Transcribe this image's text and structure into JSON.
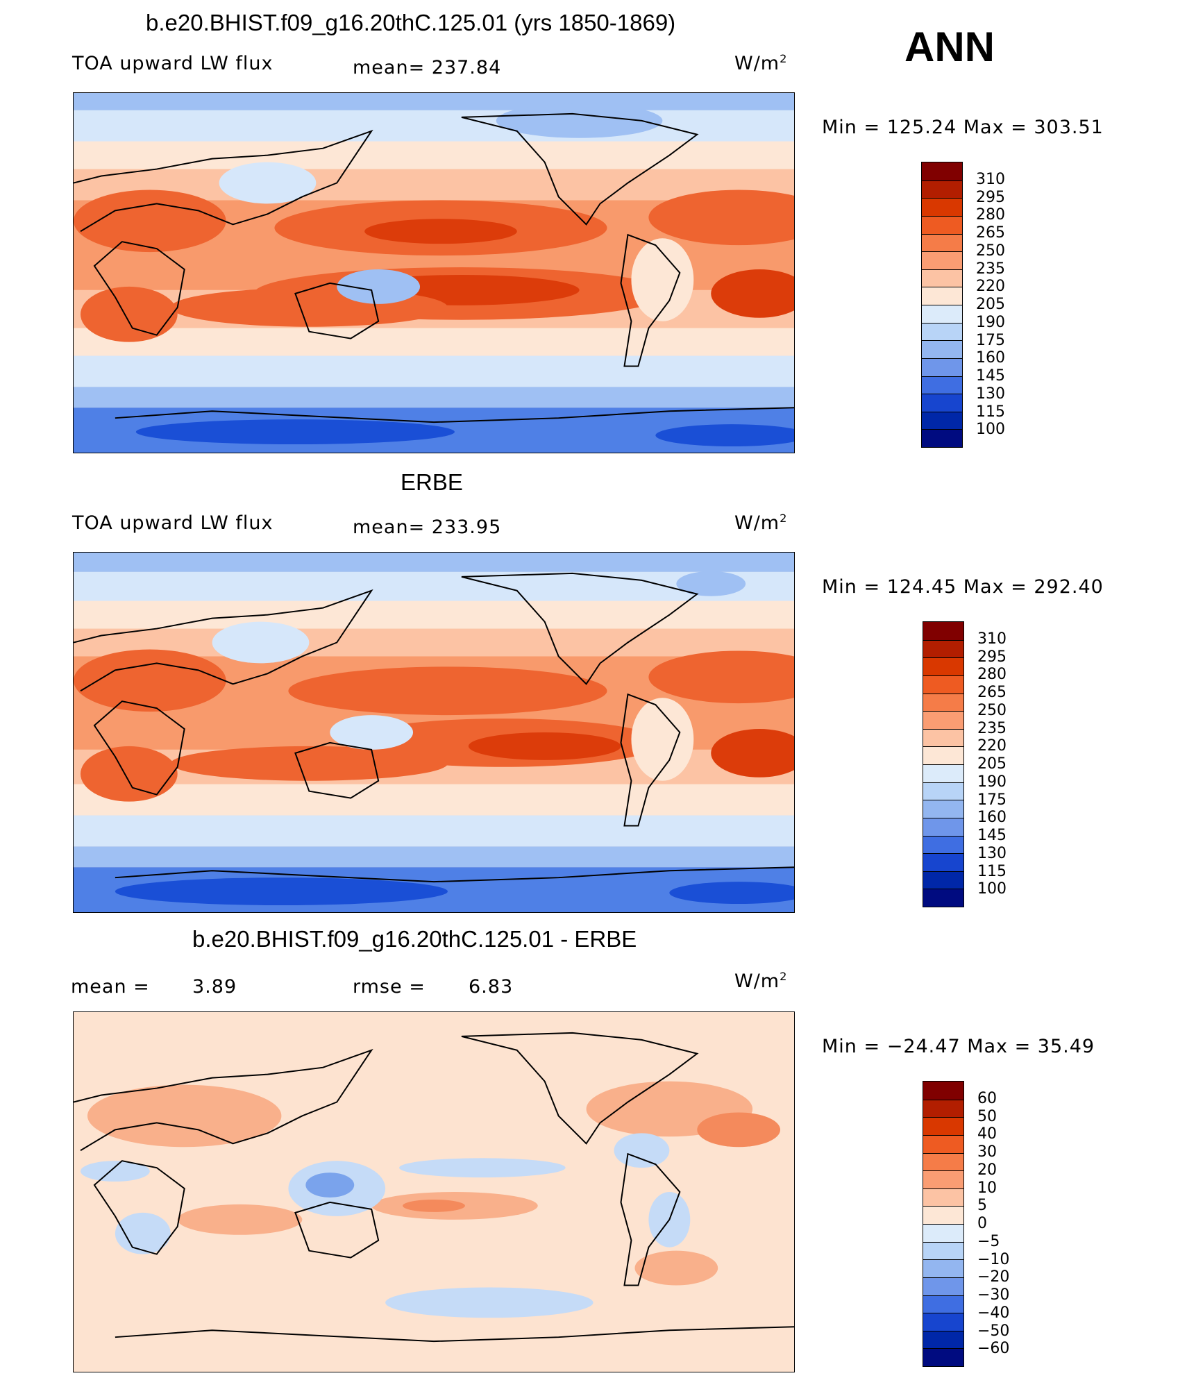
{
  "season": "ANN",
  "panels": [
    {
      "title": "b.e20.BHIST.f09_g16.20thC.125.01 (yrs 1850-1869)",
      "left_label": "TOA upward LW flux",
      "center_label": "mean=  237.84",
      "units_base": "W/m",
      "units_exp": "2",
      "minmax": "Min  =  125.24  Max  =  303.51",
      "colorbar_levels": [
        "310",
        "295",
        "280",
        "265",
        "250",
        "235",
        "220",
        "205",
        "190",
        "175",
        "160",
        "145",
        "130",
        "115",
        "100"
      ]
    },
    {
      "title": "ERBE",
      "left_label": "TOA upward LW flux",
      "center_label": "mean=  233.95",
      "units_base": "W/m",
      "units_exp": "2",
      "minmax": "Min  =  124.45  Max  =  292.40",
      "colorbar_levels": [
        "310",
        "295",
        "280",
        "265",
        "250",
        "235",
        "220",
        "205",
        "190",
        "175",
        "160",
        "145",
        "130",
        "115",
        "100"
      ]
    },
    {
      "title": "b.e20.BHIST.f09_g16.20thC.125.01 - ERBE",
      "left_label": "mean  =",
      "left_value": "3.89",
      "center_label": "rmse  =",
      "center_value": "6.83",
      "units_base": "W/m",
      "units_exp": "2",
      "minmax": "Min  =  −24.47  Max  =    35.49",
      "colorbar_levels": [
        "60",
        "50",
        "40",
        "30",
        "20",
        "10",
        "5",
        "0",
        "−5",
        "−10",
        "−20",
        "−30",
        "−40",
        "−50",
        "−60"
      ]
    }
  ],
  "colorbar_colors": [
    "#800000",
    "#b21e00",
    "#d93800",
    "#ee5b22",
    "#f57c48",
    "#fa9d73",
    "#fcc3a4",
    "#fde7d6",
    "#dcebfa",
    "#b8d4f7",
    "#93b6f0",
    "#6f96ea",
    "#3f6ee2",
    "#1745cf",
    "#0027a8",
    "#000b80"
  ],
  "map_colors": {
    "cold_ice": "#1a4fd6",
    "cold": "#4f80e6",
    "cool": "#9fc0f3",
    "light_cool": "#d6e7fa",
    "neutral": "#fde7d6",
    "warm_light": "#fcc3a4",
    "warm": "#f89a6c",
    "hot": "#ee6430",
    "hotter": "#dc3c0a",
    "diff_neutral": "#fde3d0",
    "diff_pos": "#f9b08b",
    "diff_pos2": "#f48a5c",
    "diff_neg": "#c5dbf7",
    "diff_neg2": "#7aa3ec"
  }
}
